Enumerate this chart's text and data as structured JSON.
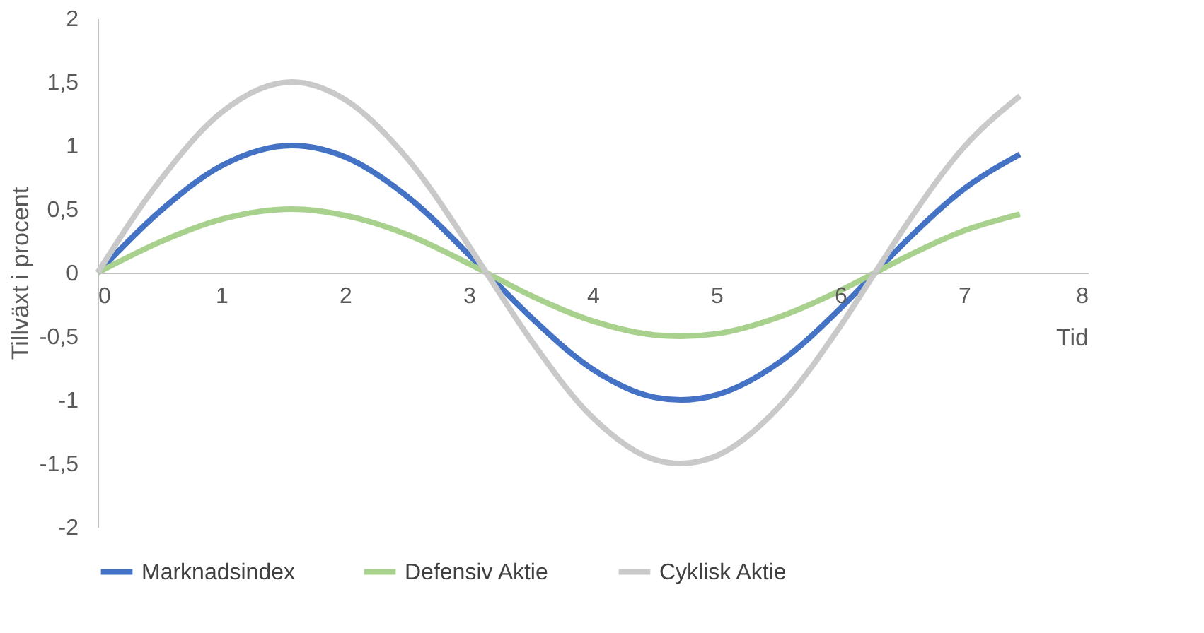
{
  "chart_data": {
    "type": "line",
    "xlabel": "Tid",
    "ylabel": "Tillväxt i procent",
    "x": [
      0,
      0.5,
      1,
      1.57,
      2,
      2.5,
      3,
      3.14,
      3.5,
      4,
      4.5,
      4.71,
      5,
      5.5,
      6,
      6.28,
      6.5,
      7,
      7.45
    ],
    "series": [
      {
        "name": "Marknadsindex",
        "color": "#4472c4",
        "values": [
          0,
          0.48,
          0.84,
          1,
          0.91,
          0.6,
          0.14,
          0,
          -0.35,
          -0.76,
          -0.98,
          -1,
          -0.96,
          -0.71,
          -0.28,
          0,
          0.22,
          0.66,
          0.93
        ]
      },
      {
        "name": "Defensiv Aktie",
        "color": "#a9d18e",
        "values": [
          0,
          0.24,
          0.42,
          0.5,
          0.45,
          0.3,
          0.07,
          0,
          -0.18,
          -0.38,
          -0.49,
          -0.5,
          -0.48,
          -0.35,
          -0.14,
          0,
          0.11,
          0.33,
          0.46
        ]
      },
      {
        "name": "Cyklisk Aktie",
        "color": "#c9c9c9",
        "values": [
          0,
          0.72,
          1.26,
          1.5,
          1.36,
          0.9,
          0.21,
          0,
          -0.53,
          -1.14,
          -1.47,
          -1.5,
          -1.44,
          -1.06,
          -0.42,
          0,
          0.33,
          0.99,
          1.39
        ]
      }
    ],
    "xlim": [
      0,
      8
    ],
    "xticks": [
      0,
      1,
      2,
      3,
      4,
      5,
      6,
      7,
      8
    ],
    "ylim": [
      -2,
      2
    ],
    "yticks": [
      -2,
      {
        "value": -1.5,
        "label": "-1,5"
      },
      -1,
      {
        "value": -0.5,
        "label": "-0,5"
      },
      0,
      {
        "value": 0.5,
        "label": "0,5"
      },
      1,
      {
        "value": 1.5,
        "label": "1,5"
      },
      2
    ],
    "grid": false,
    "legend": "bottom",
    "marker": "none",
    "line_style": "solid"
  }
}
